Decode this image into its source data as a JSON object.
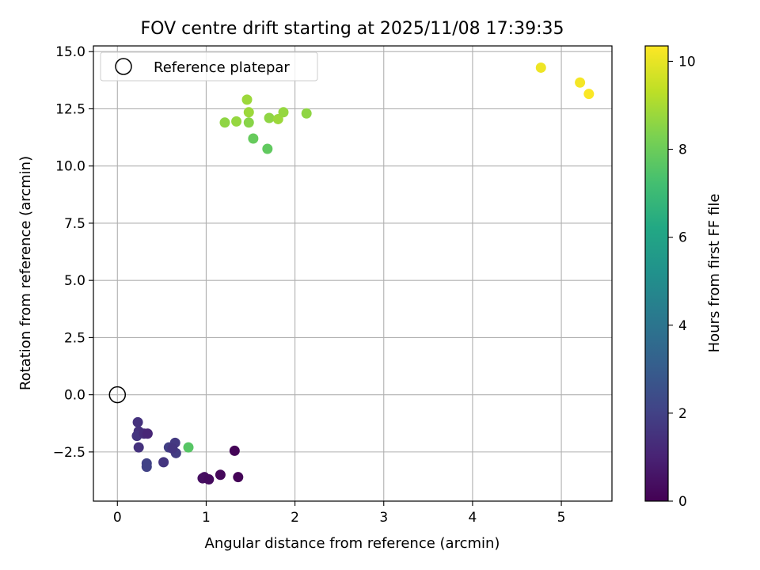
{
  "chart_data": {
    "type": "scatter",
    "title": "FOV centre drift starting at 2025/11/08 17:39:35",
    "xlabel": "Angular distance from reference (arcmin)",
    "ylabel": "Rotation from reference (arcmin)",
    "xlim": [
      -0.27,
      5.57
    ],
    "ylim": [
      -4.65,
      15.25
    ],
    "xticks": [
      0,
      1,
      2,
      3,
      4,
      5
    ],
    "xtick_labels": [
      "0",
      "1",
      "2",
      "3",
      "4",
      "5"
    ],
    "yticks": [
      -2.5,
      0,
      2.5,
      5,
      7.5,
      10,
      12.5,
      15
    ],
    "ytick_labels": [
      "−2.5",
      "0.0",
      "2.5",
      "5.0",
      "7.5",
      "10.0",
      "12.5",
      "15.0"
    ],
    "grid": true,
    "legend": {
      "position": "upper-left",
      "label": "Reference platepar"
    },
    "reference_point": {
      "x": 0,
      "y": 0
    },
    "colorbar": {
      "label": "Hours from first FF file",
      "min": 0,
      "max": 10.35,
      "ticks": [
        0,
        2,
        4,
        6,
        8,
        10
      ],
      "tick_labels": [
        "0",
        "2",
        "4",
        "6",
        "8",
        "10"
      ],
      "colormap": "viridis"
    },
    "points": [
      {
        "x": 0.23,
        "y": -1.2,
        "hours": 1.5
      },
      {
        "x": 0.24,
        "y": -1.6,
        "hours": 1.5
      },
      {
        "x": 0.22,
        "y": -1.8,
        "hours": 1.6
      },
      {
        "x": 0.3,
        "y": -1.7,
        "hours": 1.3
      },
      {
        "x": 0.34,
        "y": -1.7,
        "hours": 1.1
      },
      {
        "x": 0.24,
        "y": -2.3,
        "hours": 1.5
      },
      {
        "x": 0.33,
        "y": -3.0,
        "hours": 2.0
      },
      {
        "x": 0.33,
        "y": -3.15,
        "hours": 2.0
      },
      {
        "x": 0.52,
        "y": -2.95,
        "hours": 1.6
      },
      {
        "x": 0.58,
        "y": -2.3,
        "hours": 1.9
      },
      {
        "x": 0.65,
        "y": -2.1,
        "hours": 1.7
      },
      {
        "x": 0.66,
        "y": -2.55,
        "hours": 1.8
      },
      {
        "x": 0.62,
        "y": -2.35,
        "hours": 1.6
      },
      {
        "x": 0.8,
        "y": -2.3,
        "hours": 7.6
      },
      {
        "x": 0.96,
        "y": -3.65,
        "hours": 0.4
      },
      {
        "x": 0.98,
        "y": -3.6,
        "hours": 0.4
      },
      {
        "x": 1.03,
        "y": -3.7,
        "hours": 0.3
      },
      {
        "x": 1.16,
        "y": -3.5,
        "hours": 0.2
      },
      {
        "x": 1.32,
        "y": -2.45,
        "hours": 0.1
      },
      {
        "x": 1.36,
        "y": -3.6,
        "hours": 0.1
      },
      {
        "x": 1.21,
        "y": 11.9,
        "hours": 8.6
      },
      {
        "x": 1.34,
        "y": 11.95,
        "hours": 8.7
      },
      {
        "x": 1.46,
        "y": 12.9,
        "hours": 8.8
      },
      {
        "x": 1.48,
        "y": 12.35,
        "hours": 8.8
      },
      {
        "x": 1.48,
        "y": 11.9,
        "hours": 8.5
      },
      {
        "x": 1.53,
        "y": 11.2,
        "hours": 7.9
      },
      {
        "x": 1.69,
        "y": 10.75,
        "hours": 7.8
      },
      {
        "x": 1.71,
        "y": 12.1,
        "hours": 8.6
      },
      {
        "x": 1.81,
        "y": 12.05,
        "hours": 8.8
      },
      {
        "x": 1.87,
        "y": 12.35,
        "hours": 8.7
      },
      {
        "x": 2.13,
        "y": 12.3,
        "hours": 8.6
      },
      {
        "x": 4.77,
        "y": 14.3,
        "hours": 10.1
      },
      {
        "x": 5.21,
        "y": 13.65,
        "hours": 10.2
      },
      {
        "x": 5.31,
        "y": 13.15,
        "hours": 10.3
      }
    ]
  }
}
